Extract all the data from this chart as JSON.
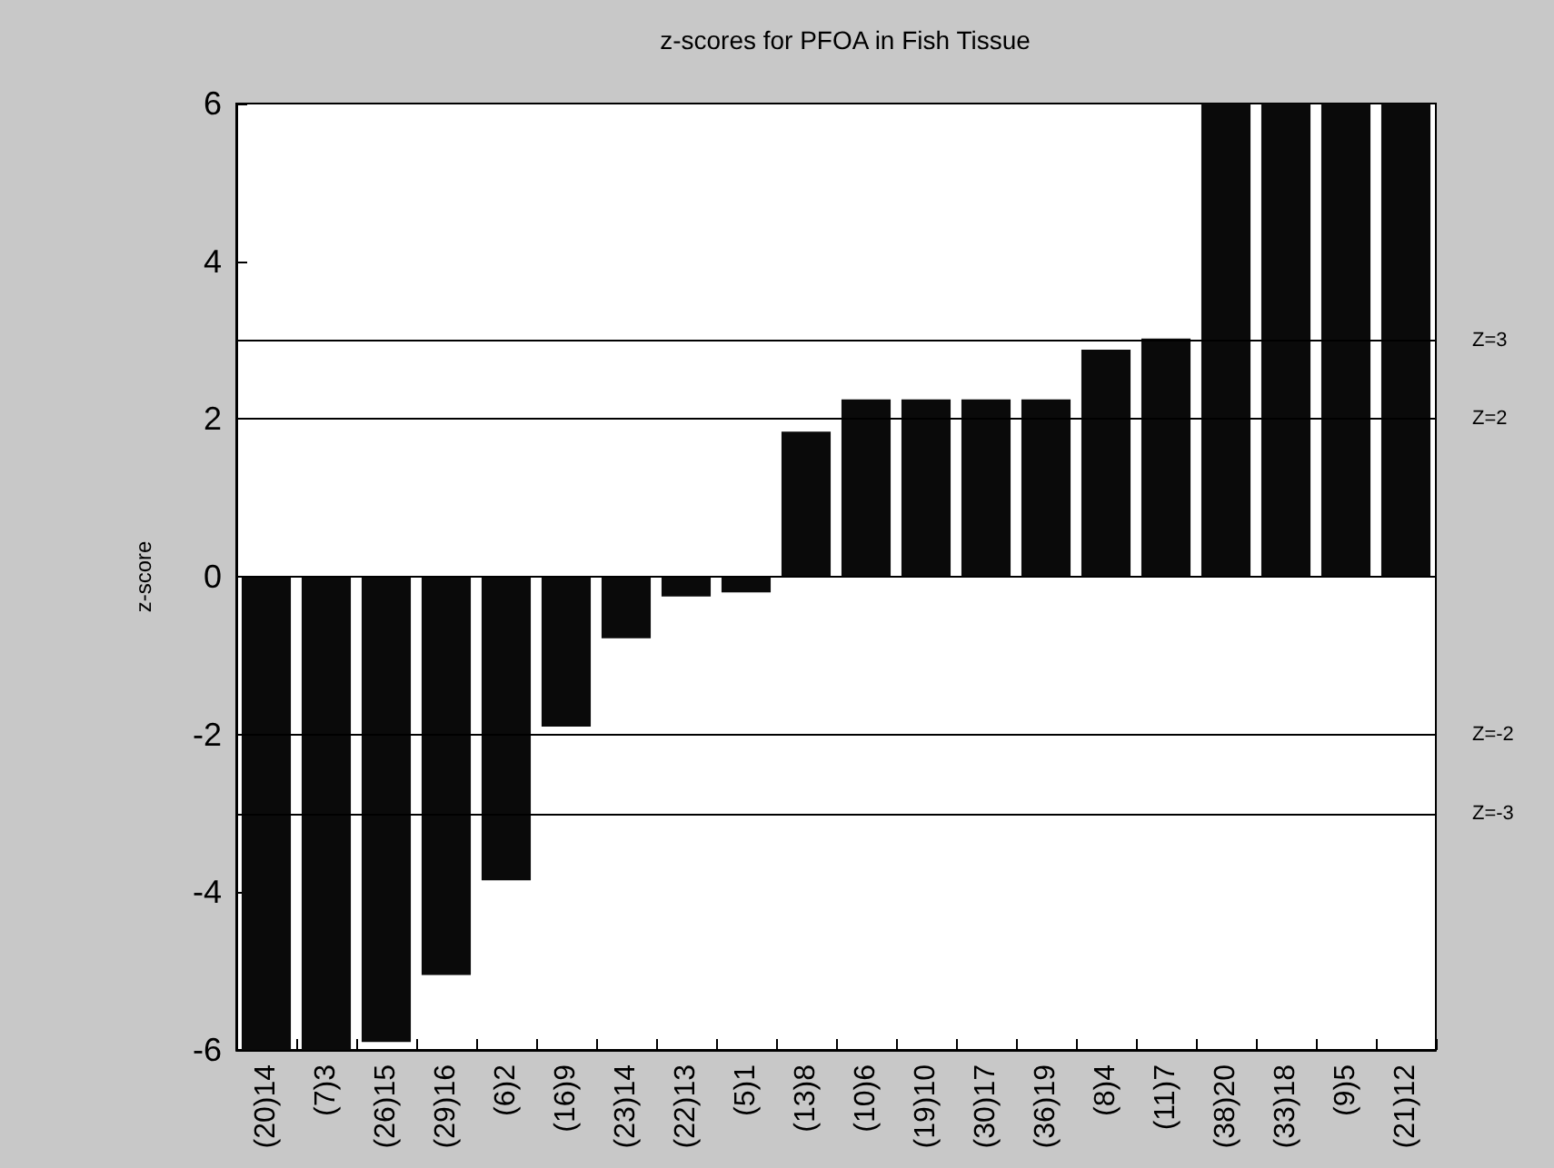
{
  "chart_data": {
    "type": "bar",
    "title": "z-scores for PFOA in Fish Tissue",
    "ylabel": "z-score",
    "categories": [
      "(20)14",
      "(7)3",
      "(26)15",
      "(29)16",
      "(6)2",
      "(16)9",
      "(23)14",
      "(22)13",
      "(5)1",
      "(13)8",
      "(10)6",
      "(19)10",
      "(30)17",
      "(36)19",
      "(8)4",
      "(11)7",
      "(38)20",
      "(33)18",
      "(9)5",
      "(21)12"
    ],
    "values": [
      -6,
      -6,
      -5.9,
      -5.05,
      -3.85,
      -1.9,
      -0.78,
      -0.25,
      -0.2,
      1.84,
      2.25,
      2.25,
      2.25,
      2.25,
      2.88,
      3.02,
      6,
      6,
      6,
      6
    ],
    "color": "#0a0a0a",
    "ylim": [
      -6,
      6
    ],
    "yticks": [
      -6,
      -4,
      -2,
      0,
      2,
      4,
      6
    ],
    "grid": false,
    "ref_lines": [
      {
        "axis": "y",
        "value": 3,
        "label": "Z=3",
        "color": "#000000"
      },
      {
        "axis": "y",
        "value": 2,
        "label": "Z=2",
        "color": "#000000"
      },
      {
        "axis": "y",
        "value": 0,
        "label": null,
        "color": "#000000"
      },
      {
        "axis": "y",
        "value": -2,
        "label": "Z=-2",
        "color": "#000000"
      },
      {
        "axis": "y",
        "value": -3,
        "label": "Z=-3",
        "color": "#000000"
      }
    ]
  }
}
